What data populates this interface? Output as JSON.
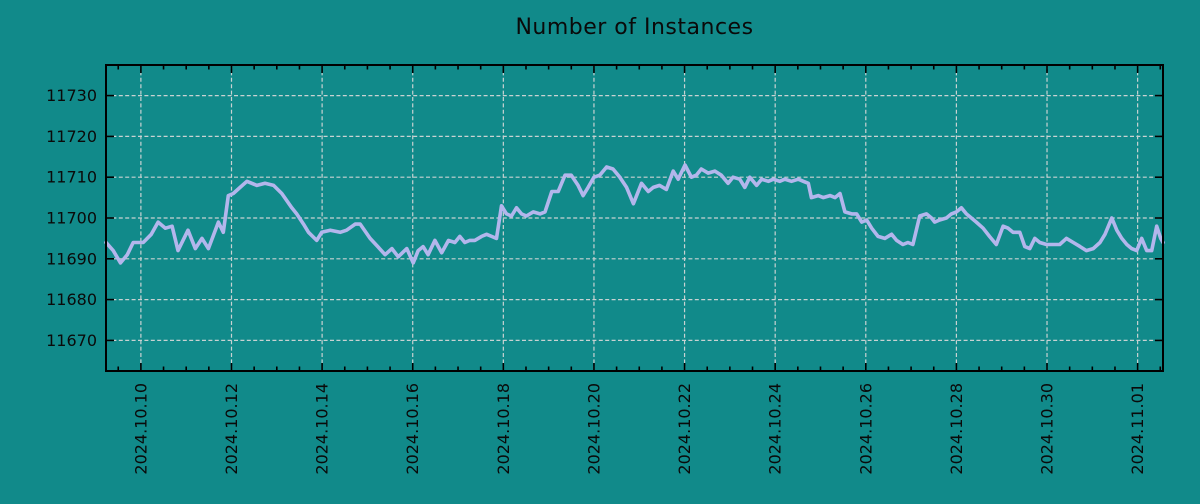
{
  "chart_data": {
    "type": "line",
    "title": "Number of Instances",
    "xlabel": "",
    "ylabel": "",
    "grid": true,
    "legend": "none",
    "x_unit": "days relative to 2024.10.10",
    "xlim": [
      -0.77,
      22.56
    ],
    "ylim": [
      11662.5,
      11737.5
    ],
    "y_ticks": [
      11670,
      11680,
      11690,
      11700,
      11710,
      11720,
      11730
    ],
    "x_major_ticks": [
      {
        "t": 0,
        "label": "2024.10.10"
      },
      {
        "t": 2,
        "label": "2024.10.12"
      },
      {
        "t": 4,
        "label": "2024.10.14"
      },
      {
        "t": 6,
        "label": "2024.10.16"
      },
      {
        "t": 8,
        "label": "2024.10.18"
      },
      {
        "t": 10,
        "label": "2024.10.20"
      },
      {
        "t": 12,
        "label": "2024.10.22"
      },
      {
        "t": 14,
        "label": "2024.10.24"
      },
      {
        "t": 16,
        "label": "2024.10.26"
      },
      {
        "t": 18,
        "label": "2024.10.28"
      },
      {
        "t": 20,
        "label": "2024.10.30"
      },
      {
        "t": 22,
        "label": "2024.11.01"
      }
    ],
    "x_minor_step": 0.5,
    "series": [
      {
        "name": "instances",
        "points": [
          [
            -0.77,
            11694
          ],
          [
            -0.61,
            11692
          ],
          [
            -0.45,
            11689
          ],
          [
            -0.3,
            11691
          ],
          [
            -0.17,
            11694
          ],
          [
            0.05,
            11694
          ],
          [
            0.23,
            11696
          ],
          [
            0.38,
            11699
          ],
          [
            0.54,
            11697.5
          ],
          [
            0.69,
            11698
          ],
          [
            0.82,
            11692
          ],
          [
            1.04,
            11697
          ],
          [
            1.2,
            11692.5
          ],
          [
            1.35,
            11695
          ],
          [
            1.49,
            11692.5
          ],
          [
            1.71,
            11699
          ],
          [
            1.82,
            11696.5
          ],
          [
            1.93,
            11705.5
          ],
          [
            2.04,
            11706
          ],
          [
            2.19,
            11707.5
          ],
          [
            2.34,
            11709
          ],
          [
            2.56,
            11708
          ],
          [
            2.74,
            11708.5
          ],
          [
            2.93,
            11708
          ],
          [
            3.11,
            11706
          ],
          [
            3.33,
            11702.5
          ],
          [
            3.44,
            11701
          ],
          [
            3.59,
            11698.5
          ],
          [
            3.7,
            11696.5
          ],
          [
            3.88,
            11694.5
          ],
          [
            3.99,
            11696.5
          ],
          [
            4.18,
            11697
          ],
          [
            4.4,
            11696.5
          ],
          [
            4.54,
            11697
          ],
          [
            4.73,
            11698.5
          ],
          [
            4.84,
            11698.5
          ],
          [
            5.06,
            11695
          ],
          [
            5.23,
            11693
          ],
          [
            5.39,
            11691
          ],
          [
            5.54,
            11692.5
          ],
          [
            5.68,
            11690.5
          ],
          [
            5.87,
            11692.5
          ],
          [
            6.01,
            11689
          ],
          [
            6.12,
            11692
          ],
          [
            6.23,
            11693
          ],
          [
            6.34,
            11691
          ],
          [
            6.49,
            11694.5
          ],
          [
            6.64,
            11691.5
          ],
          [
            6.79,
            11694.5
          ],
          [
            6.93,
            11694
          ],
          [
            7.04,
            11695.5
          ],
          [
            7.15,
            11694
          ],
          [
            7.26,
            11694.5
          ],
          [
            7.37,
            11694.5
          ],
          [
            7.52,
            11695.5
          ],
          [
            7.63,
            11696
          ],
          [
            7.74,
            11695.5
          ],
          [
            7.85,
            11695
          ],
          [
            7.96,
            11703
          ],
          [
            8.07,
            11701
          ],
          [
            8.18,
            11700.5
          ],
          [
            8.29,
            11702.5
          ],
          [
            8.4,
            11701
          ],
          [
            8.51,
            11700.5
          ],
          [
            8.66,
            11701.5
          ],
          [
            8.81,
            11701
          ],
          [
            8.92,
            11701.5
          ],
          [
            9.07,
            11706.5
          ],
          [
            9.21,
            11706.5
          ],
          [
            9.36,
            11710.5
          ],
          [
            9.5,
            11710.5
          ],
          [
            9.65,
            11708
          ],
          [
            9.76,
            11705.5
          ],
          [
            9.87,
            11707.5
          ],
          [
            10.0,
            11710
          ],
          [
            10.13,
            11710.5
          ],
          [
            10.28,
            11712.5
          ],
          [
            10.42,
            11712
          ],
          [
            10.57,
            11710
          ],
          [
            10.72,
            11707.5
          ],
          [
            10.87,
            11703.5
          ],
          [
            11.05,
            11708.5
          ],
          [
            11.2,
            11706.5
          ],
          [
            11.31,
            11707.5
          ],
          [
            11.45,
            11708
          ],
          [
            11.6,
            11707
          ],
          [
            11.75,
            11711.5
          ],
          [
            11.86,
            11709.5
          ],
          [
            12.01,
            11713
          ],
          [
            12.15,
            11710
          ],
          [
            12.26,
            11710.5
          ],
          [
            12.37,
            11712
          ],
          [
            12.52,
            11711
          ],
          [
            12.67,
            11711.5
          ],
          [
            12.81,
            11710.5
          ],
          [
            12.96,
            11708.5
          ],
          [
            13.07,
            11710
          ],
          [
            13.22,
            11709.5
          ],
          [
            13.33,
            11707.5
          ],
          [
            13.44,
            11710
          ],
          [
            13.59,
            11708
          ],
          [
            13.7,
            11709.5
          ],
          [
            13.85,
            11709
          ],
          [
            13.96,
            11709.5
          ],
          [
            14.1,
            11709
          ],
          [
            14.21,
            11709.5
          ],
          [
            14.36,
            11709
          ],
          [
            14.51,
            11709.5
          ],
          [
            14.62,
            11709
          ],
          [
            14.73,
            11708.5
          ],
          [
            14.8,
            11705
          ],
          [
            14.95,
            11705.5
          ],
          [
            15.06,
            11705
          ],
          [
            15.21,
            11705.5
          ],
          [
            15.32,
            11705
          ],
          [
            15.43,
            11706
          ],
          [
            15.54,
            11701.5
          ],
          [
            15.69,
            11701
          ],
          [
            15.8,
            11701
          ],
          [
            15.91,
            11699
          ],
          [
            16.02,
            11699.5
          ],
          [
            16.13,
            11697.5
          ],
          [
            16.27,
            11695.5
          ],
          [
            16.42,
            11695
          ],
          [
            16.57,
            11696
          ],
          [
            16.68,
            11694.5
          ],
          [
            16.82,
            11693.5
          ],
          [
            16.93,
            11694
          ],
          [
            17.04,
            11693.5
          ],
          [
            17.19,
            11700.5
          ],
          [
            17.34,
            11701
          ],
          [
            17.45,
            11700
          ],
          [
            17.52,
            11699
          ],
          [
            17.63,
            11699.5
          ],
          [
            17.78,
            11700
          ],
          [
            17.89,
            11701
          ],
          [
            18.0,
            11701.5
          ],
          [
            18.11,
            11702.5
          ],
          [
            18.22,
            11701
          ],
          [
            18.33,
            11700
          ],
          [
            18.44,
            11699
          ],
          [
            18.59,
            11697.5
          ],
          [
            18.73,
            11695.5
          ],
          [
            18.88,
            11693.5
          ],
          [
            19.03,
            11698
          ],
          [
            19.14,
            11697.5
          ],
          [
            19.25,
            11696.5
          ],
          [
            19.4,
            11696.5
          ],
          [
            19.51,
            11693
          ],
          [
            19.62,
            11692.5
          ],
          [
            19.73,
            11695
          ],
          [
            19.84,
            11694
          ],
          [
            19.99,
            11693.5
          ],
          [
            20.13,
            11693.5
          ],
          [
            20.28,
            11693.5
          ],
          [
            20.43,
            11695
          ],
          [
            20.58,
            11694
          ],
          [
            20.73,
            11693
          ],
          [
            20.87,
            11692
          ],
          [
            21.02,
            11692.5
          ],
          [
            21.17,
            11694
          ],
          [
            21.28,
            11696
          ],
          [
            21.43,
            11700
          ],
          [
            21.54,
            11697
          ],
          [
            21.65,
            11695
          ],
          [
            21.76,
            11693.5
          ],
          [
            21.87,
            11692.5
          ],
          [
            21.98,
            11692
          ],
          [
            22.09,
            11695
          ],
          [
            22.2,
            11692
          ],
          [
            22.31,
            11692
          ],
          [
            22.42,
            11698
          ],
          [
            22.51,
            11695
          ],
          [
            22.56,
            11694
          ]
        ]
      }
    ]
  },
  "colors": {
    "background": "#118a8a",
    "line": "#b3b6ec",
    "grid": "#c9d2d2",
    "axis": "#000000",
    "text": "#0a0a0a"
  }
}
